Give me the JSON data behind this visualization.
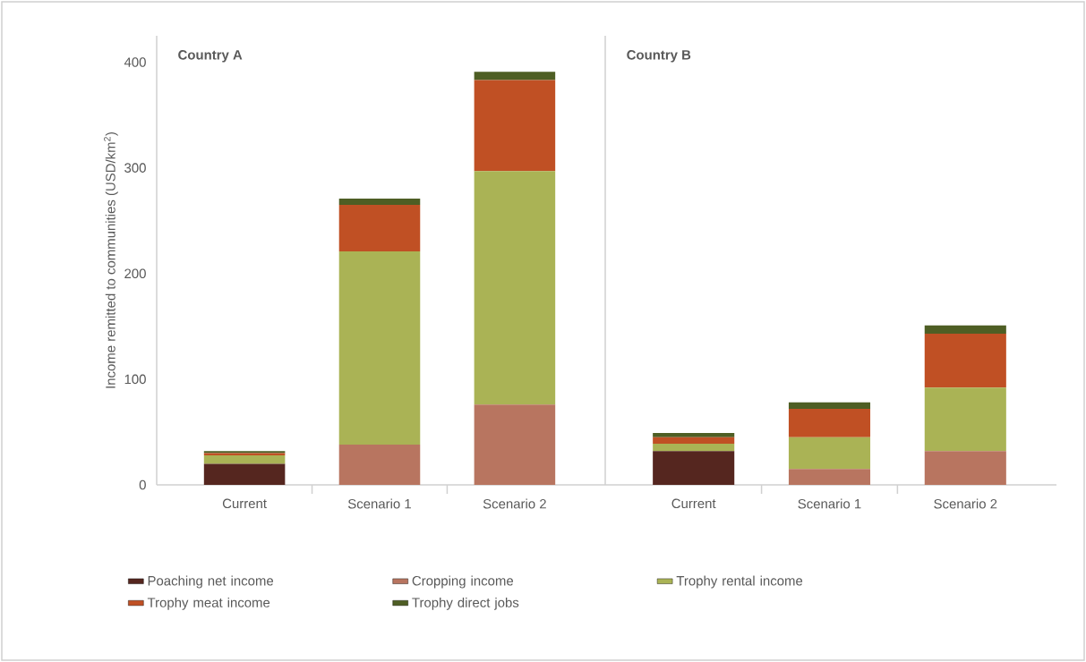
{
  "chart_data": [
    {
      "type": "bar",
      "stacked": true,
      "title": "Country A",
      "ylabel": "Income remitted to communities (USD/km$^{2}$)",
      "categories": [
        "Current",
        "Scenario 1",
        "Scenario 2"
      ],
      "ylim": [
        0,
        425
      ],
      "yticks": [
        0,
        100,
        200,
        300,
        400
      ],
      "grid": false,
      "legend": "bottom",
      "series": [
        {
          "name": "Poaching net income",
          "color": "#55261f",
          "values": [
            20,
            0,
            0
          ]
        },
        {
          "name": "Cropping income",
          "color": "#b87560",
          "values": [
            0,
            38,
            76
          ]
        },
        {
          "name": "Trophy rental income",
          "color": "#aab355",
          "values": [
            8,
            183,
            221
          ]
        },
        {
          "name": "Trophy meat income",
          "color": "#c05024",
          "values": [
            2,
            44,
            86
          ]
        },
        {
          "name": "Trophy direct jobs",
          "color": "#4e5e24",
          "values": [
            2,
            6,
            8
          ]
        }
      ]
    },
    {
      "type": "bar",
      "stacked": true,
      "title": "Country B",
      "categories": [
        "Current",
        "Scenario 1",
        "Scenario 2"
      ],
      "ylim": [
        0,
        425
      ],
      "yticks": [
        0,
        100,
        200,
        300,
        400
      ],
      "tick_labels": "x",
      "grid": false,
      "legend": false,
      "series": [
        {
          "color": "#55261f",
          "values": [
            32,
            0,
            0
          ]
        },
        {
          "color": "#b87560",
          "values": [
            0,
            15,
            32
          ]
        },
        {
          "color": "#aab355",
          "values": [
            7,
            30,
            60
          ]
        },
        {
          "color": "#c05024",
          "values": [
            6,
            27,
            51
          ]
        },
        {
          "color": "#4e5e24",
          "values": [
            4,
            6,
            8
          ]
        }
      ]
    }
  ]
}
